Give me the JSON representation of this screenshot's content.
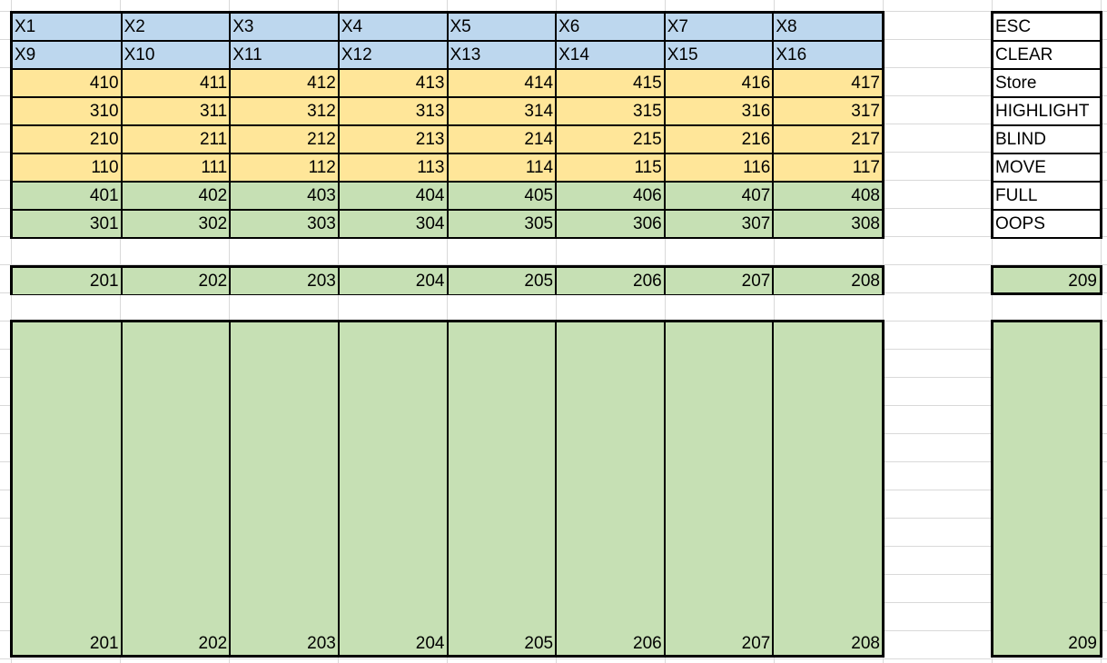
{
  "header_rows": [
    [
      "X1",
      "X2",
      "X3",
      "X4",
      "X5",
      "X6",
      "X7",
      "X8"
    ],
    [
      "X9",
      "X10",
      "X11",
      "X12",
      "X13",
      "X14",
      "X15",
      "X16"
    ]
  ],
  "yellow_rows": [
    [
      "410",
      "411",
      "412",
      "413",
      "414",
      "415",
      "416",
      "417"
    ],
    [
      "310",
      "311",
      "312",
      "313",
      "314",
      "315",
      "316",
      "317"
    ],
    [
      "210",
      "211",
      "212",
      "213",
      "214",
      "215",
      "216",
      "217"
    ],
    [
      "110",
      "111",
      "112",
      "113",
      "114",
      "115",
      "116",
      "117"
    ]
  ],
  "green_rows": [
    [
      "401",
      "402",
      "403",
      "404",
      "405",
      "406",
      "407",
      "408"
    ],
    [
      "301",
      "302",
      "303",
      "304",
      "305",
      "306",
      "307",
      "308"
    ]
  ],
  "commands": [
    "ESC",
    "CLEAR",
    "Store",
    "HIGHLIGHT",
    "BLIND",
    "MOVE",
    "FULL",
    "OOPS"
  ],
  "button_row": [
    "201",
    "202",
    "203",
    "204",
    "205",
    "206",
    "207",
    "208"
  ],
  "button_extra": "209",
  "fader_labels": [
    "201",
    "202",
    "203",
    "204",
    "205",
    "206",
    "207",
    "208"
  ],
  "fader_extra": "209",
  "colors": {
    "header_blue": "#bdd7ee",
    "yellow": "#ffe699",
    "green": "#c6e0b4"
  }
}
